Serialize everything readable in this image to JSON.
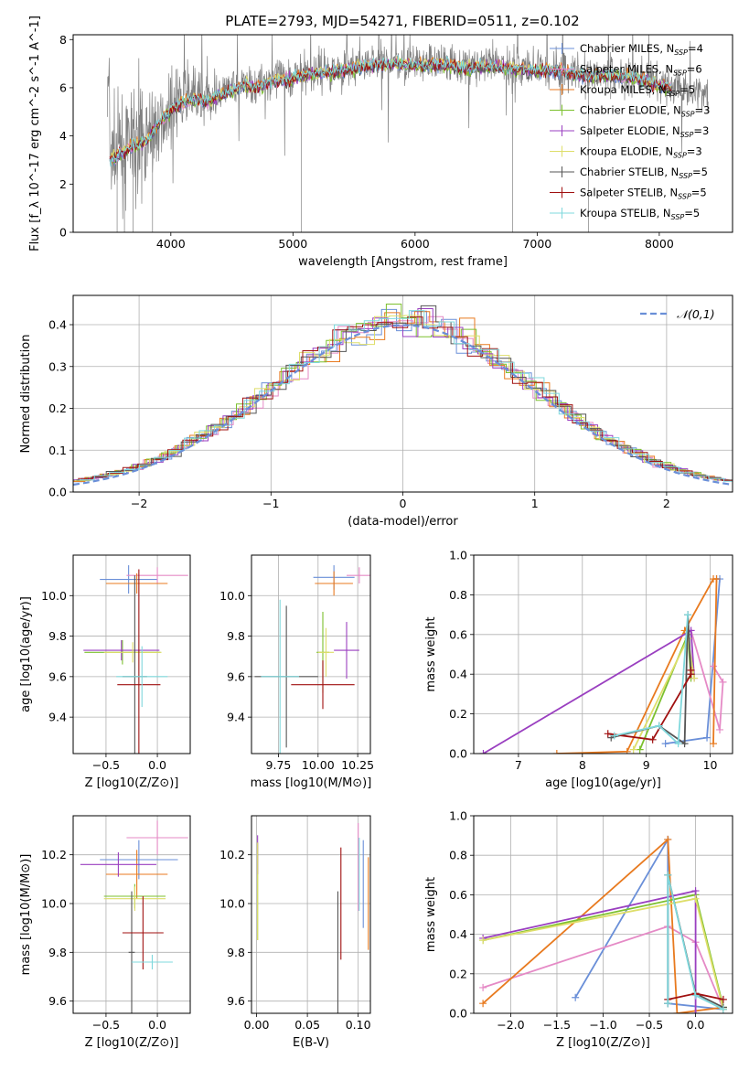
{
  "figure": {
    "title": "PLATE=2793, MJD=54271, FIBERID=0511, z=0.102"
  },
  "colors": {
    "c1": "#6a8fd8",
    "c2": "#e58ac6",
    "c3": "#e87a1f",
    "c4": "#7cc02e",
    "c5": "#9a3fc0",
    "c6": "#dede6a",
    "c7": "#555555",
    "c8": "#a01010",
    "c9": "#7fd8dc",
    "data": "#808080",
    "normal": "#6a8fd8"
  },
  "chart_data": [
    {
      "id": "spectrum",
      "type": "line",
      "title": "PLATE=2793, MJD=54271, FIBERID=0511, z=0.102",
      "xlabel": "wavelength [Angstrom, rest frame]",
      "ylabel": "Flux [f_λ 10^-17 erg cm^-2 s^-1 A^-1]",
      "xlim": [
        3200,
        8600
      ],
      "ylim": [
        0,
        8.2
      ],
      "xticks": [
        4000,
        5000,
        6000,
        7000,
        8000
      ],
      "yticks": [
        0,
        2,
        4,
        6,
        8
      ],
      "grid": false,
      "legend_position": "top-right",
      "legend": [
        {
          "label": "Chabrier MILES, N",
          "sub": "SSP",
          "tail": "=4",
          "color": "c1"
        },
        {
          "label": "Salpeter MILES, N",
          "sub": "SSP",
          "tail": "=6",
          "color": "c2"
        },
        {
          "label": "Kroupa MILES, N",
          "sub": "SSP",
          "tail": "=5",
          "color": "c3"
        },
        {
          "label": "Chabrier ELODIE, N",
          "sub": "SSP",
          "tail": "=3",
          "color": "c4"
        },
        {
          "label": "Salpeter ELODIE, N",
          "sub": "SSP",
          "tail": "=3",
          "color": "c5"
        },
        {
          "label": "Kroupa ELODIE, N",
          "sub": "SSP",
          "tail": "=3",
          "color": "c6"
        },
        {
          "label": "Chabrier STELIB, N",
          "sub": "SSP",
          "tail": "=5",
          "color": "c7"
        },
        {
          "label": "Salpeter STELIB, N",
          "sub": "SSP",
          "tail": "=5",
          "color": "c8"
        },
        {
          "label": "Kroupa STELIB, N",
          "sub": "SSP",
          "tail": "=5",
          "color": "c9"
        }
      ],
      "continuum_x": [
        3500,
        3600,
        3700,
        3800,
        3900,
        4000,
        4100,
        4200,
        4300,
        4400,
        4500,
        4600,
        4700,
        4800,
        4900,
        5000,
        5200,
        5400,
        5600,
        5800,
        6000,
        6200,
        6400,
        6600,
        6800,
        7000,
        7200,
        7400,
        7600,
        7800,
        8000,
        8200,
        8400
      ],
      "continuum_y": [
        3.1,
        3.4,
        3.7,
        3.9,
        4.6,
        5.2,
        5.5,
        5.6,
        5.5,
        5.8,
        6.0,
        6.2,
        6.1,
        6.3,
        6.4,
        6.5,
        6.7,
        6.8,
        7.0,
        7.1,
        7.0,
        7.1,
        6.9,
        7.0,
        6.9,
        6.8,
        6.8,
        6.6,
        6.6,
        6.5,
        6.2,
        6.0,
        5.8
      ]
    },
    {
      "id": "residuals",
      "type": "step",
      "xlabel": "(data-model)/error",
      "ylabel": "Normed distribution",
      "xlim": [
        -2.5,
        2.5
      ],
      "ylim": [
        0,
        0.47
      ],
      "xticks": [
        -2,
        -1,
        0,
        1,
        2
      ],
      "yticks": [
        0.0,
        0.1,
        0.2,
        0.3,
        0.4
      ],
      "grid": true,
      "legend": "𝒩(0,1)",
      "legend_position": "top-right",
      "bins": 44
    },
    {
      "id": "age-vs-Z",
      "type": "errorbar",
      "xlabel": "Z [log10(Z/Z⊙)]",
      "ylabel": "age  [log10(age/yr)]",
      "xlim": [
        -0.82,
        0.32
      ],
      "ylim": [
        9.22,
        10.2
      ],
      "xticks": [
        -0.5,
        0.0
      ],
      "yticks": [
        9.4,
        9.6,
        9.8,
        10.0
      ],
      "grid": true,
      "points": [
        {
          "x": -0.28,
          "y": 10.08,
          "xerr": 0.28,
          "yerr": 0.07,
          "color": "c1"
        },
        {
          "x": 0.0,
          "y": 10.1,
          "xerr": 0.3,
          "yerr": 0.04,
          "color": "c2"
        },
        {
          "x": -0.2,
          "y": 10.06,
          "xerr": 0.3,
          "yerr": 0.05,
          "color": "c3"
        },
        {
          "x": -0.34,
          "y": 9.72,
          "xerr": 0.37,
          "yerr": 0.06,
          "color": "c4"
        },
        {
          "x": -0.35,
          "y": 9.73,
          "xerr": 0.37,
          "yerr": 0.05,
          "color": "c5"
        },
        {
          "x": -0.24,
          "y": 9.72,
          "xerr": 0.28,
          "yerr": 0.05,
          "color": "c6"
        },
        {
          "x": -0.22,
          "y": 9.6,
          "xerr": 0.12,
          "yerr": 0.5,
          "color": "c7"
        },
        {
          "x": -0.18,
          "y": 9.56,
          "xerr": 0.21,
          "yerr": 0.57,
          "color": "c8"
        },
        {
          "x": -0.15,
          "y": 9.6,
          "xerr": 0.25,
          "yerr": 0.15,
          "color": "c9"
        }
      ]
    },
    {
      "id": "age-vs-mass",
      "type": "errorbar",
      "xlabel": "mass [log10(M/M⊙)]",
      "ylabel": "",
      "xlim": [
        9.58,
        10.33
      ],
      "ylim": [
        9.22,
        10.2
      ],
      "xticks": [
        9.75,
        10.0,
        10.25
      ],
      "xticklabels": [
        "9.75",
        "10.00",
        "10.25"
      ],
      "yticks": [
        9.4,
        9.6,
        9.8,
        10.0
      ],
      "grid": true,
      "points": [
        {
          "x": 10.1,
          "y": 10.09,
          "xerr": 0.13,
          "yerr": 0.06,
          "color": "c1"
        },
        {
          "x": 10.26,
          "y": 10.1,
          "xerr": 0.08,
          "yerr": 0.04,
          "color": "c2"
        },
        {
          "x": 10.1,
          "y": 10.06,
          "xerr": 0.12,
          "yerr": 0.06,
          "color": "c3"
        },
        {
          "x": 10.03,
          "y": 9.72,
          "xerr": 0.04,
          "yerr": 0.2,
          "color": "c4"
        },
        {
          "x": 10.18,
          "y": 9.73,
          "xerr": 0.08,
          "yerr": 0.14,
          "color": "c5"
        },
        {
          "x": 10.05,
          "y": 9.72,
          "xerr": 0.05,
          "yerr": 0.12,
          "color": "c6"
        },
        {
          "x": 9.8,
          "y": 9.6,
          "xerr": 0.2,
          "yerr": 0.35,
          "color": "c7"
        },
        {
          "x": 10.03,
          "y": 9.56,
          "xerr": 0.2,
          "yerr": 0.12,
          "color": "c8"
        },
        {
          "x": 9.76,
          "y": 9.6,
          "xerr": 0.12,
          "yerr": 0.38,
          "color": "c9"
        }
      ]
    },
    {
      "id": "weight-vs-age",
      "type": "line",
      "xlabel": "age  [log10(age/yr)]",
      "ylabel": "mass weight",
      "xlim": [
        6.3,
        10.35
      ],
      "ylim": [
        0,
        1.0
      ],
      "xticks": [
        7,
        8,
        9,
        10
      ],
      "yticks": [
        0.0,
        0.2,
        0.4,
        0.6,
        0.8,
        1.0
      ],
      "grid": true,
      "series": [
        {
          "color": "c1",
          "x": [
            9.3,
            9.95,
            10.15,
            10.1
          ],
          "y": [
            0.05,
            0.08,
            0.88,
            0.88
          ]
        },
        {
          "color": "c2",
          "x": [
            10.05,
            10.2,
            10.15,
            9.7
          ],
          "y": [
            0.44,
            0.36,
            0.12,
            0.62
          ]
        },
        {
          "color": "c3",
          "x": [
            7.6,
            8.7,
            9.6,
            10.05,
            10.1,
            10.05
          ],
          "y": [
            0.0,
            0.01,
            0.62,
            0.88,
            0.88,
            0.05
          ]
        },
        {
          "color": "c4",
          "x": [
            8.9,
            9.65,
            9.7
          ],
          "y": [
            0.02,
            0.6,
            0.38
          ]
        },
        {
          "color": "c5",
          "x": [
            6.45,
            9.7,
            9.75
          ],
          "y": [
            0.0,
            0.62,
            0.38
          ]
        },
        {
          "color": "c6",
          "x": [
            8.8,
            9.65,
            9.75
          ],
          "y": [
            0.02,
            0.58,
            0.38
          ]
        },
        {
          "color": "c7",
          "x": [
            8.45,
            9.2,
            9.6,
            9.65,
            9.7
          ],
          "y": [
            0.08,
            0.14,
            0.05,
            0.7,
            0.4
          ]
        },
        {
          "color": "c8",
          "x": [
            8.4,
            9.1,
            9.7,
            9.7
          ],
          "y": [
            0.1,
            0.07,
            0.4,
            0.42
          ]
        },
        {
          "color": "c9",
          "x": [
            8.5,
            9.2,
            9.5,
            9.65
          ],
          "y": [
            0.09,
            0.14,
            0.05,
            0.7
          ]
        }
      ]
    },
    {
      "id": "mass-vs-Z",
      "type": "errorbar",
      "xlabel": "Z [log10(Z/Z⊙)]",
      "ylabel": "mass [log10(M/M⊙)]",
      "xlim": [
        -0.82,
        0.32
      ],
      "ylim": [
        9.55,
        10.36
      ],
      "xticks": [
        -0.5,
        0.0
      ],
      "yticks": [
        9.6,
        9.8,
        10.0,
        10.2
      ],
      "grid": true,
      "points": [
        {
          "x": -0.18,
          "y": 10.18,
          "xerr": 0.38,
          "yerr": 0.08,
          "color": "c1"
        },
        {
          "x": -0.0,
          "y": 10.27,
          "xerr": 0.3,
          "yerr": 0.07,
          "color": "c2"
        },
        {
          "x": -0.2,
          "y": 10.12,
          "xerr": 0.3,
          "yerr": 0.1,
          "color": "c3"
        },
        {
          "x": -0.22,
          "y": 10.03,
          "xerr": 0.3,
          "yerr": 0.05,
          "color": "c4"
        },
        {
          "x": -0.38,
          "y": 10.16,
          "xerr": 0.37,
          "yerr": 0.05,
          "color": "c5"
        },
        {
          "x": -0.22,
          "y": 10.02,
          "xerr": 0.3,
          "yerr": 0.05,
          "color": "c6"
        },
        {
          "x": -0.25,
          "y": 9.8,
          "xerr": 0.03,
          "yerr": 0.25,
          "color": "c7"
        },
        {
          "x": -0.14,
          "y": 9.88,
          "xerr": 0.2,
          "yerr": 0.15,
          "color": "c8"
        },
        {
          "x": -0.05,
          "y": 9.76,
          "xerr": 0.2,
          "yerr": 0.03,
          "color": "c9"
        }
      ]
    },
    {
      "id": "mass-vs-ebv",
      "type": "errorbar",
      "xlabel": "E(B-V)",
      "ylabel": "",
      "xlim": [
        -0.005,
        0.112
      ],
      "ylim": [
        9.55,
        10.36
      ],
      "xticks": [
        0.0,
        0.05,
        0.1
      ],
      "xticklabels": [
        "0.00",
        "0.05",
        "0.10"
      ],
      "yticks": [
        9.6,
        9.8,
        10.0,
        10.2
      ],
      "grid": true,
      "points": [
        {
          "x": 0.105,
          "y": 10.08,
          "xerr": 0.0,
          "yerr": 0.18,
          "color": "c1"
        },
        {
          "x": 0.1,
          "y": 10.15,
          "xerr": 0.0,
          "yerr": 0.18,
          "color": "c2"
        },
        {
          "x": 0.11,
          "y": 10.0,
          "xerr": 0.0,
          "yerr": 0.19,
          "color": "c3"
        },
        {
          "x": 0.001,
          "y": 10.05,
          "xerr": 0.0,
          "yerr": 0.2,
          "color": "c4"
        },
        {
          "x": 0.001,
          "y": 10.2,
          "xerr": 0.0,
          "yerr": 0.08,
          "color": "c5"
        },
        {
          "x": 0.001,
          "y": 10.05,
          "xerr": 0.0,
          "yerr": 0.2,
          "color": "c6"
        },
        {
          "x": 0.08,
          "y": 9.8,
          "xerr": 0.0,
          "yerr": 0.25,
          "color": "c7"
        },
        {
          "x": 0.083,
          "y": 10.0,
          "xerr": 0.0,
          "yerr": 0.23,
          "color": "c8"
        },
        {
          "x": 0.101,
          "y": 10.12,
          "xerr": 0.0,
          "yerr": 0.15,
          "color": "c9"
        }
      ]
    },
    {
      "id": "weight-vs-Z",
      "type": "line",
      "xlabel": "Z [log10(Z/Z⊙)]",
      "ylabel": "mass weight",
      "xlim": [
        -2.4,
        0.4
      ],
      "ylim": [
        0,
        1.0
      ],
      "xticks": [
        -2.0,
        -1.5,
        -1.0,
        -0.5,
        0.0
      ],
      "yticks": [
        0.0,
        0.2,
        0.4,
        0.6,
        0.8,
        1.0
      ],
      "grid": true,
      "series": [
        {
          "color": "c1",
          "x": [
            -1.3,
            -0.3,
            -0.3,
            0.3
          ],
          "y": [
            0.08,
            0.88,
            0.05,
            0.02
          ]
        },
        {
          "color": "c2",
          "x": [
            -2.3,
            -0.3,
            0.0,
            0.3
          ],
          "y": [
            0.13,
            0.44,
            0.36,
            0.02
          ]
        },
        {
          "color": "c3",
          "x": [
            -2.3,
            -0.3,
            -0.2,
            0.3
          ],
          "y": [
            0.05,
            0.88,
            0.0,
            0.03
          ]
        },
        {
          "color": "c4",
          "x": [
            -2.3,
            0.0,
            0.3
          ],
          "y": [
            0.37,
            0.6,
            0.03
          ]
        },
        {
          "color": "c5",
          "x": [
            -2.3,
            0.0,
            0.0
          ],
          "y": [
            0.38,
            0.62,
            0.0
          ]
        },
        {
          "color": "c6",
          "x": [
            -2.3,
            0.0,
            0.3
          ],
          "y": [
            0.37,
            0.58,
            0.02
          ]
        },
        {
          "color": "c7",
          "x": [
            -0.3,
            -0.3,
            0.0,
            0.3
          ],
          "y": [
            0.05,
            0.7,
            0.1,
            0.03
          ]
        },
        {
          "color": "c8",
          "x": [
            -0.3,
            0.0,
            0.3
          ],
          "y": [
            0.07,
            0.1,
            0.07
          ]
        },
        {
          "color": "c9",
          "x": [
            -0.3,
            -0.3,
            0.0,
            0.3
          ],
          "y": [
            0.05,
            0.7,
            0.09,
            0.02
          ]
        }
      ]
    }
  ]
}
